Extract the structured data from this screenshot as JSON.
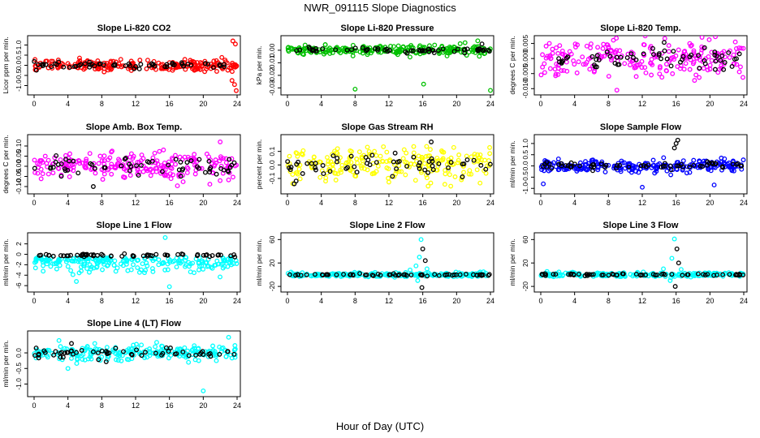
{
  "figure": {
    "main_title": "NWR_091115  Slope Diagnostics",
    "xlabel": "Hour of Day (UTC)"
  },
  "chart_data": [
    {
      "type": "scatter",
      "title": "Slope Li-820 CO2",
      "ylabel": "Licor ppm per min.",
      "xlim": [
        0,
        24
      ],
      "ylim": [
        -1.3,
        1.3
      ],
      "yticks": [
        -1.0,
        -0.5,
        0.0,
        0.5,
        1.0
      ],
      "ytick_labels": [
        "-1.0",
        "-0.5",
        "0.0",
        "0.5",
        "1.0"
      ],
      "xticks": [
        0,
        4,
        8,
        12,
        16,
        20,
        24
      ],
      "colors": {
        "main": "#ff0000",
        "ref": "#000000"
      },
      "sample": {
        "spread": 0.18,
        "ref_spread": 0.1
      },
      "outliers": [
        {
          "x": 23.5,
          "y": 1.2,
          "series": "main"
        },
        {
          "x": 23.8,
          "y": 1.05,
          "series": "main"
        },
        {
          "x": 23.7,
          "y": -0.95,
          "series": "main"
        },
        {
          "x": 23.9,
          "y": -1.25,
          "series": "main"
        },
        {
          "x": 23.4,
          "y": -0.75,
          "series": "main"
        }
      ]
    },
    {
      "type": "scatter",
      "title": "Slope Li-820 Pressure",
      "ylabel": "kPa per min.",
      "xlim": [
        0,
        24
      ],
      "ylim": [
        -0.033,
        0.009
      ],
      "yticks": [
        -0.03,
        -0.02,
        -0.01,
        0.0
      ],
      "ytick_labels": [
        "-0.03",
        "-0.02",
        "-0.01",
        "0.00"
      ],
      "xticks": [
        0,
        4,
        8,
        12,
        16,
        20,
        24
      ],
      "colors": {
        "main": "#00c000",
        "ref": "#000000"
      },
      "sample": {
        "spread": 0.0025,
        "ref_spread": 0.0012
      },
      "outliers": [
        {
          "x": 8.0,
          "y": -0.031,
          "series": "main"
        },
        {
          "x": 16.1,
          "y": -0.027,
          "series": "main"
        },
        {
          "x": 24.0,
          "y": -0.032,
          "series": "main"
        },
        {
          "x": 22.5,
          "y": 0.0075,
          "series": "main"
        },
        {
          "x": 21.0,
          "y": 0.006,
          "series": "main"
        },
        {
          "x": 23.0,
          "y": 0.005,
          "series": "ref"
        }
      ]
    },
    {
      "type": "scatter",
      "title": "Slope Li-820 Temp.",
      "ylabel": "degrees C per min.",
      "xlim": [
        0,
        24
      ],
      "ylim": [
        -0.011,
        0.0065
      ],
      "yticks": [
        -0.01,
        -0.005,
        0.0,
        0.005
      ],
      "ytick_labels": [
        "-0.010",
        "-0.005",
        "0.000",
        "0.005"
      ],
      "xticks": [
        0,
        4,
        8,
        12,
        16,
        20,
        24
      ],
      "colors": {
        "main": "#ff00ff",
        "ref": "#000000"
      },
      "sample": {
        "spread": 0.004,
        "ref_spread": 0.003
      },
      "outliers": [
        {
          "x": 23.0,
          "y": 0.0055,
          "series": "main"
        },
        {
          "x": 9.0,
          "y": -0.0105,
          "series": "main"
        }
      ]
    },
    {
      "type": "scatter",
      "title": "Slope Amb. Box Temp.",
      "ylabel": "degrees C per min.",
      "xlim": [
        0,
        24
      ],
      "ylim": [
        -0.12,
        0.14
      ],
      "yticks": [
        -0.1,
        -0.05,
        0.0,
        0.05,
        0.1
      ],
      "ytick_labels": [
        "-0.10",
        "-0.05",
        "0.00",
        "0.05",
        "0.10"
      ],
      "xticks": [
        0,
        4,
        8,
        12,
        16,
        20,
        24
      ],
      "colors": {
        "main": "#ff00ff",
        "ref": "#000000"
      },
      "sample": {
        "spread": 0.045,
        "ref_spread": 0.035
      },
      "outliers": [
        {
          "x": 22.0,
          "y": 0.12,
          "series": "main"
        },
        {
          "x": 7.0,
          "y": -0.1,
          "series": "ref"
        }
      ]
    },
    {
      "type": "scatter",
      "title": "Slope Gas Stream RH",
      "ylabel": "percent per min.",
      "xlim": [
        0,
        24
      ],
      "ylim": [
        -0.19,
        0.2
      ],
      "yticks": [
        -0.1,
        0.0,
        0.1
      ],
      "ytick_labels": [
        "-0.1",
        "0.0",
        "0.1"
      ],
      "xticks": [
        0,
        4,
        8,
        12,
        16,
        20,
        24
      ],
      "colors": {
        "main": "#ffff00",
        "ref": "#000000"
      },
      "sample": {
        "spread": 0.08,
        "ref_spread": 0.06
      },
      "outliers": [
        {
          "x": 17.0,
          "y": 0.17,
          "series": "ref"
        }
      ]
    },
    {
      "type": "scatter",
      "title": "Slope Sample Flow",
      "ylabel": "ml/min per min.",
      "xlim": [
        0,
        24
      ],
      "ylim": [
        -1.1,
        1.25
      ],
      "yticks": [
        -1.0,
        -0.5,
        0.0,
        0.5,
        1.0
      ],
      "ytick_labels": [
        "-1.0",
        "-0.5",
        "0.0",
        "0.5",
        "1.0"
      ],
      "xticks": [
        0,
        4,
        8,
        12,
        16,
        20,
        24
      ],
      "colors": {
        "main": "#0000ff",
        "ref": "#000000"
      },
      "sample": {
        "spread": 0.18,
        "ref_spread": 0.12
      },
      "outliers": [
        {
          "x": 16.2,
          "y": 1.15,
          "series": "ref"
        },
        {
          "x": 16.0,
          "y": 1.0,
          "series": "ref"
        },
        {
          "x": 15.8,
          "y": 0.8,
          "series": "ref"
        },
        {
          "x": 12.0,
          "y": -0.95,
          "series": "main"
        },
        {
          "x": 20.5,
          "y": -0.85,
          "series": "main"
        },
        {
          "x": 0.3,
          "y": -0.8,
          "series": "main"
        }
      ]
    },
    {
      "type": "scatter",
      "title": "Slope Line 1 Flow",
      "ylabel": "ml/min per min.",
      "xlim": [
        0,
        24
      ],
      "ylim": [
        -6.6,
        3.5
      ],
      "yticks": [
        -6,
        -4,
        -2,
        0,
        2
      ],
      "ytick_labels": [
        "-6",
        "-4",
        "-2",
        "0",
        "2"
      ],
      "xticks": [
        0,
        4,
        8,
        12,
        16,
        20,
        24
      ],
      "colors": {
        "main": "#00ffff",
        "ref": "#000000"
      },
      "sample": {
        "spread": 1.4,
        "ref_spread": 0.25
      },
      "outliers": [
        {
          "x": 15.5,
          "y": 3.2,
          "series": "main"
        },
        {
          "x": 16.0,
          "y": -6.2,
          "series": "main"
        },
        {
          "x": 5.0,
          "y": -5.2,
          "series": "main"
        }
      ]
    },
    {
      "type": "scatter",
      "title": "Slope Line 2 Flow",
      "ylabel": "ml/min per min.",
      "xlim": [
        0,
        24
      ],
      "ylim": [
        -24,
        66
      ],
      "yticks": [
        -20,
        20,
        60
      ],
      "ytick_labels": [
        "-20",
        "20",
        "60"
      ],
      "xticks": [
        0,
        4,
        8,
        12,
        16,
        20,
        24
      ],
      "colors": {
        "main": "#00ffff",
        "ref": "#000000"
      },
      "sample": {
        "spread": 2.5,
        "ref_spread": 1.2
      },
      "outliers": [
        {
          "x": 15.8,
          "y": 60,
          "series": "main"
        },
        {
          "x": 16.0,
          "y": 44,
          "series": "ref"
        },
        {
          "x": 15.6,
          "y": 30,
          "series": "main"
        },
        {
          "x": 16.3,
          "y": 24,
          "series": "ref"
        },
        {
          "x": 15.2,
          "y": 15,
          "series": "main"
        },
        {
          "x": 15.9,
          "y": -22,
          "series": "ref"
        },
        {
          "x": 15.4,
          "y": -10,
          "series": "main"
        },
        {
          "x": 14.5,
          "y": 8,
          "series": "main"
        },
        {
          "x": 16.5,
          "y": 10,
          "series": "main"
        }
      ]
    },
    {
      "type": "scatter",
      "title": "Slope Line 3 Flow",
      "ylabel": "ml/min per min.",
      "xlim": [
        0,
        24
      ],
      "ylim": [
        -24,
        66
      ],
      "yticks": [
        -20,
        20,
        60
      ],
      "ytick_labels": [
        "-20",
        "20",
        "60"
      ],
      "xticks": [
        0,
        4,
        8,
        12,
        16,
        20,
        24
      ],
      "colors": {
        "main": "#00ffff",
        "ref": "#000000"
      },
      "sample": {
        "spread": 2.5,
        "ref_spread": 1.2
      },
      "outliers": [
        {
          "x": 15.8,
          "y": 61,
          "series": "main"
        },
        {
          "x": 16.1,
          "y": 44,
          "series": "ref"
        },
        {
          "x": 15.5,
          "y": 28,
          "series": "main"
        },
        {
          "x": 16.3,
          "y": 20,
          "series": "ref"
        },
        {
          "x": 15.9,
          "y": -20,
          "series": "ref"
        },
        {
          "x": 15.3,
          "y": -10,
          "series": "main"
        },
        {
          "x": 14.5,
          "y": 10,
          "series": "main"
        },
        {
          "x": 16.6,
          "y": 9,
          "series": "main"
        }
      ]
    },
    {
      "type": "scatter",
      "title": "Slope Line 4 (LT) Flow",
      "ylabel": "ml/min per min.",
      "xlim": [
        0,
        24
      ],
      "ylim": [
        -1.3,
        0.6
      ],
      "yticks": [
        -1.0,
        -0.5,
        0.0
      ],
      "ytick_labels": [
        "-1.0",
        "-0.5",
        "0.0"
      ],
      "xticks": [
        0,
        4,
        8,
        12,
        16,
        20,
        24
      ],
      "colors": {
        "main": "#00ffff",
        "ref": "#000000"
      },
      "sample": {
        "spread": 0.16,
        "ref_spread": 0.12
      },
      "outliers": [
        {
          "x": 20.0,
          "y": -1.22,
          "series": "main"
        },
        {
          "x": 23.0,
          "y": 0.5,
          "series": "main"
        },
        {
          "x": 4.0,
          "y": -0.5,
          "series": "main"
        }
      ]
    }
  ]
}
